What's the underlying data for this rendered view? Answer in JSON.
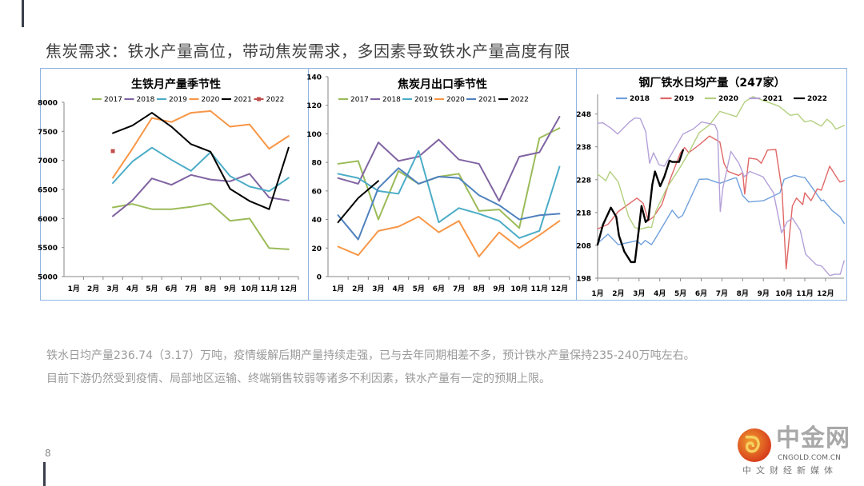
{
  "page": {
    "title": "焦炭需求：铁水产量高位，带动焦炭需求，多因素导致铁水产量高度有限",
    "paragraph1": "铁水日均产量236.74（3.17）万吨，疫情缓解后期产量持续走强，已与去年同期相差不多，预计铁水产量保持235-240万吨左右。",
    "paragraph2": "目前下游仍然受到疫情、局部地区运输、终端销售较弱等诸多不利因素，铁水产量有一定的预期上限。",
    "page_number": "8",
    "logo": {
      "name": "中金网",
      "domain": "CNGOLD.COM.CN",
      "tagline": "中文财经新媒体"
    }
  },
  "chart_data": [
    {
      "type": "line",
      "title": "生铁月产量季节性",
      "xlabel": "",
      "ylabel": "",
      "categories": [
        "1月",
        "2月",
        "3月",
        "4月",
        "5月",
        "6月",
        "7月",
        "8月",
        "9月",
        "10月",
        "11月",
        "12月"
      ],
      "ylim": [
        5000,
        8000
      ],
      "yticks": [
        5000,
        5500,
        6000,
        6500,
        7000,
        7500,
        8000
      ],
      "legend": "top",
      "series": [
        {
          "name": "2017",
          "color": "#9bbb59",
          "values": [
            null,
            null,
            6190,
            6250,
            6160,
            6160,
            6200,
            6260,
            5960,
            6000,
            5490,
            5470
          ]
        },
        {
          "name": "2018",
          "color": "#8064a2",
          "values": [
            null,
            null,
            6040,
            6310,
            6690,
            6580,
            6750,
            6670,
            6640,
            6770,
            6360,
            6310
          ]
        },
        {
          "name": "2019",
          "color": "#4bacc6",
          "values": [
            null,
            null,
            6610,
            6980,
            7220,
            7010,
            6820,
            7140,
            6730,
            6550,
            6470,
            6700
          ]
        },
        {
          "name": "2020",
          "color": "#f79646",
          "values": [
            null,
            null,
            6700,
            7200,
            7730,
            7660,
            7820,
            7850,
            7580,
            7620,
            7200,
            7420
          ]
        },
        {
          "name": "2021",
          "color": "#000000",
          "values": [
            null,
            null,
            7470,
            7600,
            7820,
            7580,
            7280,
            7150,
            6510,
            6300,
            6160,
            7220
          ]
        },
        {
          "name": "2022",
          "color": "#c0504d",
          "marker": "square",
          "values": [
            null,
            null,
            7160,
            null,
            null,
            null,
            null,
            null,
            null,
            null,
            null,
            null
          ]
        }
      ]
    },
    {
      "type": "line",
      "title": "焦炭月出口季节性",
      "xlabel": "",
      "ylabel": "",
      "categories": [
        "1月",
        "2月",
        "3月",
        "4月",
        "5月",
        "6月",
        "7月",
        "8月",
        "9月",
        "10月",
        "11月",
        "12月"
      ],
      "ylim": [
        0,
        140
      ],
      "yticks": [
        0,
        20,
        40,
        60,
        80,
        100,
        120,
        140
      ],
      "legend": "top",
      "series": [
        {
          "name": "2017",
          "color": "#9bbb59",
          "values": [
            79,
            81,
            40,
            74,
            65,
            70,
            72,
            46,
            47,
            34,
            97,
            104
          ]
        },
        {
          "name": "2018",
          "color": "#8064a2",
          "values": [
            69,
            65,
            94,
            81,
            84,
            96,
            82,
            79,
            53,
            84,
            87,
            112
          ]
        },
        {
          "name": "2019",
          "color": "#4bacc6",
          "values": [
            72,
            69,
            60,
            58,
            88,
            38,
            48,
            44,
            39,
            27,
            32,
            77
          ]
        },
        {
          "name": "2020",
          "color": "#f79646",
          "values": [
            21,
            15,
            32,
            35,
            42,
            31,
            39,
            14,
            31,
            20,
            29,
            39
          ]
        },
        {
          "name": "2021",
          "color": "#4f81bd",
          "values": [
            43,
            26,
            62,
            76,
            65,
            70,
            69,
            57,
            50,
            40,
            43,
            44
          ]
        },
        {
          "name": "2022",
          "color": "#000000",
          "values": [
            38,
            55,
            67,
            null,
            null,
            null,
            null,
            null,
            null,
            null,
            null,
            null
          ]
        }
      ]
    },
    {
      "type": "line",
      "title": "钢厂铁水日均产量（247家）",
      "xlabel": "",
      "ylabel": "",
      "x_tick_labels": [
        "1月",
        "2月",
        "3月",
        "4月",
        "5月",
        "6月",
        "7月",
        "8月",
        "9月",
        "10月",
        "11月",
        "12月"
      ],
      "x_unit": "months since start of January",
      "ylim": [
        198,
        254
      ],
      "yticks": [
        198,
        208,
        218,
        228,
        238,
        248
      ],
      "legend": "top",
      "series": [
        {
          "name": "2018",
          "color": "#6fa0dc",
          "points": [
            [
              0,
              208.6
            ],
            [
              0.5,
              211.4
            ],
            [
              1,
              208.2
            ],
            [
              1.9,
              209.4
            ],
            [
              2.1,
              208.2
            ],
            [
              2.3,
              209.5
            ],
            [
              2.6,
              208.2
            ],
            [
              2.8,
              210.2
            ],
            [
              3.6,
              218.7
            ],
            [
              3.9,
              216.3
            ],
            [
              4.1,
              217.1
            ],
            [
              4.9,
              228.1
            ],
            [
              5.3,
              228.2
            ],
            [
              5.9,
              226.9
            ],
            [
              6.6,
              228.5
            ],
            [
              6.7,
              228.5
            ],
            [
              7,
              223.2
            ],
            [
              7.3,
              221.2
            ],
            [
              8,
              221.6
            ],
            [
              8.8,
              224
            ],
            [
              9,
              228.1
            ],
            [
              9.5,
              229.3
            ],
            [
              9.9,
              228.7
            ],
            [
              10,
              228.7
            ],
            [
              10.4,
              225.2
            ],
            [
              10.8,
              221.6
            ],
            [
              10.9,
              221.8
            ],
            [
              11.3,
              218.7
            ],
            [
              11.7,
              216.7
            ],
            [
              11.9,
              214.7
            ]
          ]
        },
        {
          "name": "2019",
          "color": "#e06666",
          "points": [
            [
              0,
              213
            ],
            [
              0.5,
              214.4
            ],
            [
              1,
              218.3
            ],
            [
              1.9,
              222.4
            ],
            [
              2.2,
              220.8
            ],
            [
              2.45,
              215.5
            ],
            [
              2.7,
              216.7
            ],
            [
              3.1,
              220.4
            ],
            [
              3.5,
              228.1
            ],
            [
              4,
              236.2
            ],
            [
              4.2,
              237.8
            ],
            [
              4.4,
              236.2
            ],
            [
              4.9,
              238.6
            ],
            [
              5.4,
              241.3
            ],
            [
              5.9,
              239.5
            ],
            [
              6.1,
              233
            ],
            [
              6.3,
              230.5
            ],
            [
              6.8,
              229.3
            ],
            [
              7,
              230.1
            ],
            [
              7.1,
              223.6
            ],
            [
              7.3,
              234.6
            ],
            [
              7.7,
              234.2
            ],
            [
              7.9,
              233
            ],
            [
              8.2,
              237
            ],
            [
              8.6,
              237.2
            ],
            [
              8.9,
              224.8
            ],
            [
              9.1,
              200.8
            ],
            [
              9.4,
              220
            ],
            [
              9.6,
              222.4
            ],
            [
              9.9,
              220.4
            ],
            [
              10,
              224
            ],
            [
              10.3,
              221.6
            ],
            [
              10.6,
              225.2
            ],
            [
              10.8,
              224.8
            ],
            [
              11.2,
              232.1
            ],
            [
              11.6,
              228.1
            ],
            [
              11.7,
              227.3
            ],
            [
              11.9,
              227.7
            ]
          ]
        },
        {
          "name": "2020",
          "color": "#b3d07f",
          "points": [
            [
              0,
              229.7
            ],
            [
              0.4,
              227.7
            ],
            [
              0.6,
              230.5
            ],
            [
              1,
              227.3
            ],
            [
              1.5,
              216.7
            ],
            [
              1.8,
              213.4
            ],
            [
              2.1,
              213
            ],
            [
              2.45,
              213.6
            ],
            [
              2.6,
              213.4
            ],
            [
              2.8,
              218.3
            ],
            [
              3.35,
              225.6
            ],
            [
              3.9,
              230.9
            ],
            [
              4.4,
              236.2
            ],
            [
              4.9,
              242.3
            ],
            [
              5.4,
              244.7
            ],
            [
              5.9,
              248.8
            ],
            [
              6.7,
              247.2
            ],
            [
              7.1,
              251.7
            ],
            [
              7.5,
              253.3
            ],
            [
              8,
              252.1
            ],
            [
              8.75,
              250.4
            ],
            [
              9.3,
              247.6
            ],
            [
              9.65,
              248
            ],
            [
              10,
              245.6
            ],
            [
              10.3,
              246
            ],
            [
              10.8,
              244.3
            ],
            [
              11.07,
              246.4
            ],
            [
              11.3,
              245.2
            ],
            [
              11.5,
              243.4
            ],
            [
              11.9,
              244.5
            ]
          ]
        },
        {
          "name": "2021",
          "color": "#b4a0d8",
          "points": [
            [
              0,
              245.2
            ],
            [
              0.26,
              245.3
            ],
            [
              0.64,
              243.7
            ],
            [
              0.97,
              241.9
            ],
            [
              1.54,
              245.6
            ],
            [
              1.8,
              246.8
            ],
            [
              2.06,
              246.6
            ],
            [
              2.32,
              242.7
            ],
            [
              2.51,
              233
            ],
            [
              2.7,
              236.2
            ],
            [
              2.96,
              232.6
            ],
            [
              3.22,
              232.1
            ],
            [
              3.6,
              236.2
            ],
            [
              4.12,
              241.9
            ],
            [
              4.63,
              243.5
            ],
            [
              5.02,
              245.6
            ],
            [
              5.66,
              244.7
            ],
            [
              5.79,
              242.7
            ],
            [
              5.92,
              218.3
            ],
            [
              6.05,
              225.6
            ],
            [
              6.43,
              236.6
            ],
            [
              6.82,
              233
            ],
            [
              7.08,
              228.9
            ],
            [
              7.34,
              230.5
            ],
            [
              7.98,
              228.9
            ],
            [
              8.49,
              224
            ],
            [
              8.88,
              211.8
            ],
            [
              9.14,
              215.1
            ],
            [
              9.4,
              216.3
            ],
            [
              9.78,
              212.6
            ],
            [
              10.04,
              205.3
            ],
            [
              10.55,
              202.1
            ],
            [
              10.81,
              201.7
            ],
            [
              11.2,
              198.8
            ],
            [
              11.45,
              199.2
            ],
            [
              11.71,
              199.2
            ],
            [
              11.9,
              203.3
            ]
          ]
        },
        {
          "name": "2022",
          "color": "#000000",
          "width": 2.4,
          "points": [
            [
              0,
              208.2
            ],
            [
              0.26,
              214.3
            ],
            [
              0.64,
              219.5
            ],
            [
              0.9,
              216.7
            ],
            [
              1.03,
              211
            ],
            [
              1.29,
              206.1
            ],
            [
              1.61,
              202.9
            ],
            [
              1.8,
              202.9
            ],
            [
              2.0,
              213.4
            ],
            [
              2.12,
              220
            ],
            [
              2.32,
              215.1
            ],
            [
              2.45,
              215.9
            ],
            [
              2.64,
              226.5
            ],
            [
              2.77,
              230.5
            ],
            [
              3.02,
              226
            ],
            [
              3.22,
              228.9
            ],
            [
              3.47,
              233.8
            ],
            [
              3.6,
              233.4
            ],
            [
              3.93,
              233.4
            ],
            [
              4.12,
              237
            ]
          ]
        }
      ]
    }
  ]
}
